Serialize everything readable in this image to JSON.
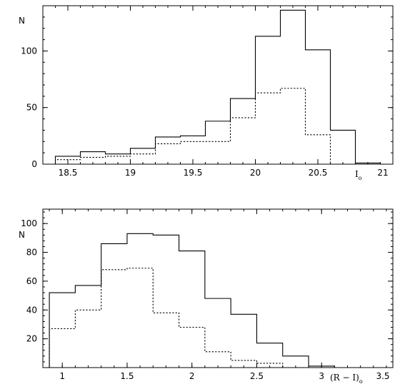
{
  "chart_data": [
    {
      "type": "histogram",
      "ylabel": "N",
      "xlabel_main": "I",
      "xlabel_sub": "o",
      "xlim": [
        18.3,
        21.1
      ],
      "ylim": [
        0,
        140
      ],
      "x_ticks": [
        18.5,
        19,
        19.5,
        20,
        20.5
      ],
      "x_tick_labels": [
        "18.5",
        "19",
        "19.5",
        "20",
        "20.5"
      ],
      "x_end_label": "21",
      "y_ticks": [
        0,
        50,
        100
      ],
      "y_tick_labels": [
        "0",
        "50",
        "100"
      ],
      "bin_edges": [
        18.4,
        18.6,
        18.8,
        19.0,
        19.2,
        19.4,
        19.6,
        19.8,
        20.0,
        20.2,
        20.4,
        20.6,
        20.8,
        21.0
      ],
      "series": [
        {
          "style": "solid",
          "values": [
            7,
            11,
            9,
            14,
            24,
            25,
            38,
            58,
            113,
            136,
            101,
            30,
            1
          ]
        },
        {
          "style": "dotted",
          "values": [
            4,
            6,
            7,
            9,
            18,
            20,
            20,
            41,
            63,
            67,
            26,
            0,
            0
          ]
        }
      ]
    },
    {
      "type": "histogram",
      "ylabel": "N",
      "xlabel_main": "(R − I)",
      "xlabel_sub": "o",
      "xlim": [
        0.85,
        3.55
      ],
      "ylim": [
        0,
        110
      ],
      "x_ticks": [
        1,
        1.5,
        2,
        2.5,
        3
      ],
      "x_tick_labels": [
        "1",
        "1.5",
        "2",
        "2.5",
        "3"
      ],
      "x_end_label": "3.5",
      "y_ticks": [
        20,
        40,
        60,
        80,
        100
      ],
      "y_tick_labels": [
        "20",
        "40",
        "60",
        "80",
        "100"
      ],
      "bin_edges": [
        0.9,
        1.1,
        1.3,
        1.5,
        1.7,
        1.9,
        2.1,
        2.3,
        2.5,
        2.7,
        2.9,
        3.1
      ],
      "series": [
        {
          "style": "solid",
          "values": [
            52,
            57,
            86,
            93,
            92,
            81,
            48,
            37,
            17,
            8,
            1
          ]
        },
        {
          "style": "dotted",
          "values": [
            27,
            40,
            68,
            69,
            38,
            28,
            11,
            5,
            3,
            0,
            0
          ]
        }
      ]
    }
  ]
}
